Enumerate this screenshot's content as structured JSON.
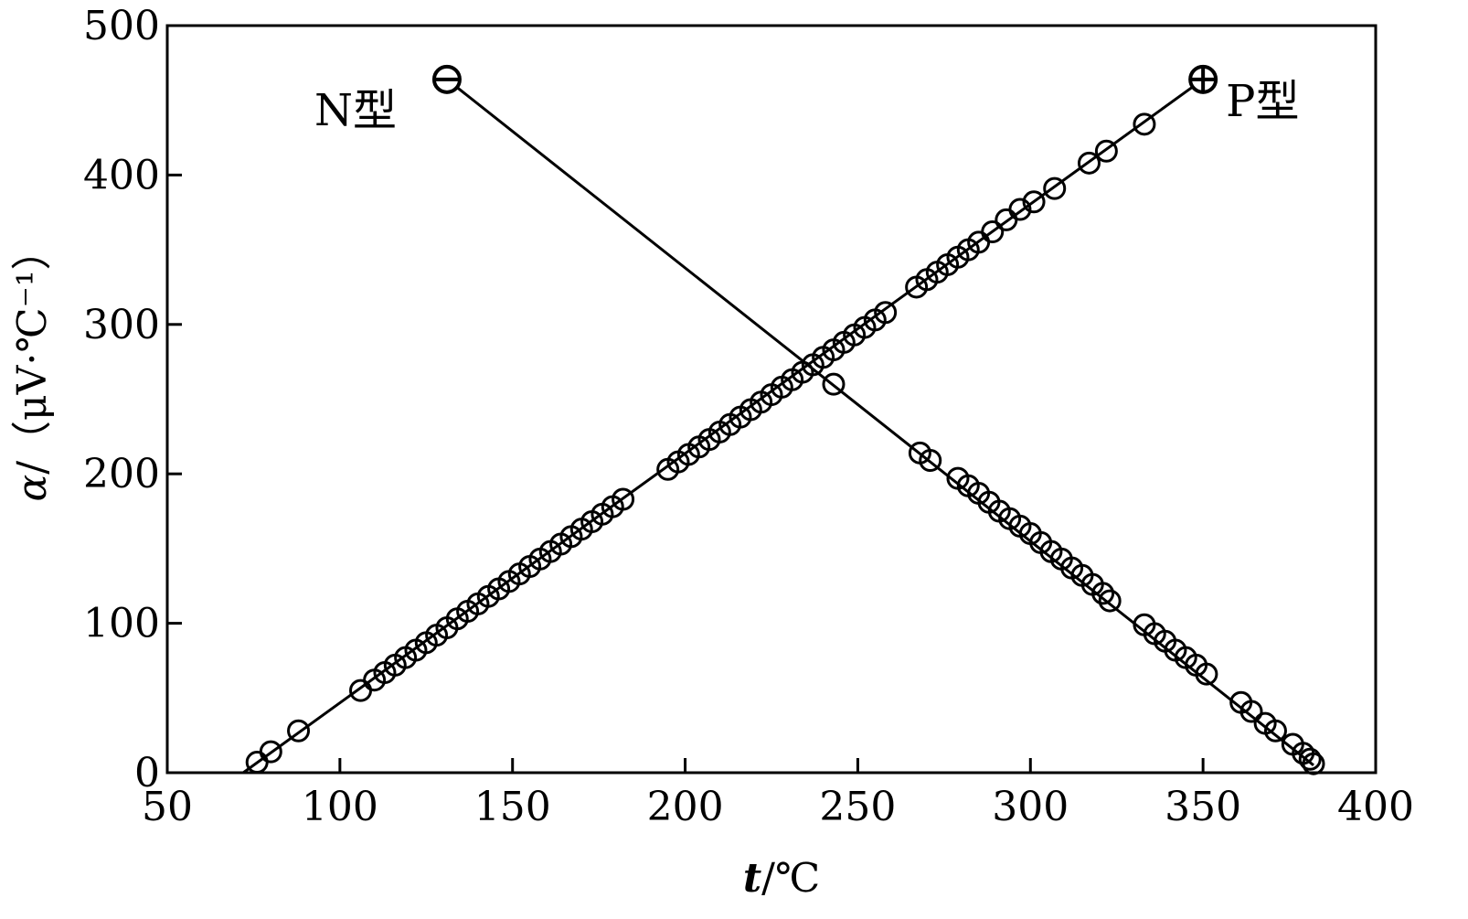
{
  "chart_data": {
    "type": "scatter",
    "title": "",
    "xlabel": {
      "symbol": "t",
      "unit": "/℃"
    },
    "ylabel": {
      "symbol": "α",
      "unit": "/（μV·℃⁻¹）"
    },
    "xlim": [
      50,
      400
    ],
    "ylim": [
      0,
      500
    ],
    "x_ticks": [
      50,
      100,
      150,
      200,
      250,
      300,
      350,
      400
    ],
    "y_ticks": [
      0,
      100,
      200,
      300,
      400,
      500
    ],
    "grid": false,
    "legend": "none",
    "annotations": [
      {
        "text": "N型",
        "near": "N-type series start"
      },
      {
        "text": "P型",
        "near": "P-type series end"
      }
    ],
    "series": [
      {
        "line": [
          [
            131,
            464
          ],
          [
            382,
            5
          ]
        ],
        "end_marker": "minus-circle",
        "points": [
          [
            131,
            464
          ],
          [
            243,
            260
          ],
          [
            268,
            214
          ],
          [
            271,
            209
          ],
          [
            279,
            197
          ],
          [
            282,
            192
          ],
          [
            285,
            187
          ],
          [
            288,
            181
          ],
          [
            291,
            175
          ],
          [
            294,
            170
          ],
          [
            297,
            165
          ],
          [
            300,
            160
          ],
          [
            303,
            154
          ],
          [
            306,
            148
          ],
          [
            309,
            143
          ],
          [
            312,
            137
          ],
          [
            315,
            132
          ],
          [
            318,
            126
          ],
          [
            321,
            120
          ],
          [
            323,
            115
          ],
          [
            333,
            99
          ],
          [
            336,
            93
          ],
          [
            339,
            88
          ],
          [
            342,
            82
          ],
          [
            345,
            77
          ],
          [
            348,
            72
          ],
          [
            351,
            66
          ],
          [
            361,
            47
          ],
          [
            364,
            41
          ],
          [
            368,
            33
          ],
          [
            371,
            28
          ],
          [
            376,
            19
          ],
          [
            379,
            13
          ],
          [
            381,
            9
          ],
          [
            382,
            6
          ]
        ]
      },
      {
        "line": [
          [
            72,
            0
          ],
          [
            350,
            464
          ]
        ],
        "end_marker": "plus-circle",
        "points": [
          [
            76,
            7
          ],
          [
            80,
            14
          ],
          [
            88,
            28
          ],
          [
            106,
            55
          ],
          [
            110,
            62
          ],
          [
            113,
            67
          ],
          [
            116,
            72
          ],
          [
            119,
            77
          ],
          [
            122,
            82
          ],
          [
            125,
            87
          ],
          [
            128,
            92
          ],
          [
            131,
            97
          ],
          [
            134,
            103
          ],
          [
            137,
            108
          ],
          [
            140,
            113
          ],
          [
            143,
            118
          ],
          [
            146,
            123
          ],
          [
            149,
            128
          ],
          [
            152,
            133
          ],
          [
            155,
            138
          ],
          [
            158,
            143
          ],
          [
            161,
            148
          ],
          [
            164,
            153
          ],
          [
            167,
            158
          ],
          [
            170,
            163
          ],
          [
            173,
            168
          ],
          [
            176,
            173
          ],
          [
            179,
            178
          ],
          [
            182,
            183
          ],
          [
            195,
            203
          ],
          [
            198,
            208
          ],
          [
            201,
            213
          ],
          [
            204,
            218
          ],
          [
            207,
            223
          ],
          [
            210,
            228
          ],
          [
            213,
            233
          ],
          [
            216,
            238
          ],
          [
            219,
            243
          ],
          [
            222,
            248
          ],
          [
            225,
            253
          ],
          [
            228,
            258
          ],
          [
            231,
            263
          ],
          [
            234,
            268
          ],
          [
            237,
            273
          ],
          [
            240,
            278
          ],
          [
            243,
            283
          ],
          [
            246,
            288
          ],
          [
            249,
            293
          ],
          [
            252,
            298
          ],
          [
            255,
            303
          ],
          [
            258,
            308
          ],
          [
            267,
            325
          ],
          [
            270,
            330
          ],
          [
            273,
            335
          ],
          [
            276,
            340
          ],
          [
            279,
            345
          ],
          [
            282,
            350
          ],
          [
            285,
            355
          ],
          [
            289,
            362
          ],
          [
            293,
            370
          ],
          [
            297,
            377
          ],
          [
            301,
            382
          ],
          [
            307,
            391
          ],
          [
            317,
            408
          ],
          [
            322,
            416
          ],
          [
            333,
            434
          ],
          [
            350,
            464
          ]
        ]
      }
    ]
  }
}
